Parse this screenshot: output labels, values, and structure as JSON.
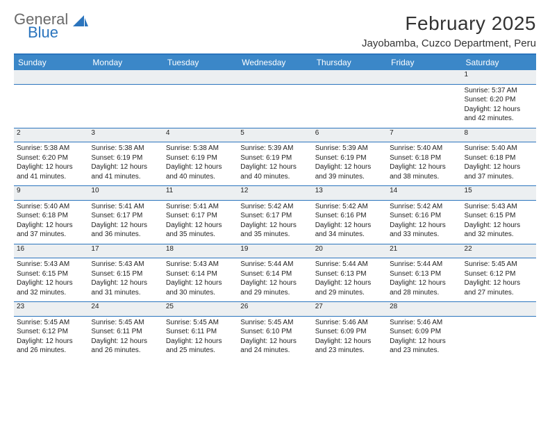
{
  "logo": {
    "text1": "General",
    "text2": "Blue",
    "color_gray": "#6a6a6a",
    "color_blue": "#2a74bd"
  },
  "title": "February 2025",
  "location": "Jayobamba, Cuzco Department, Peru",
  "header_bg": "#3b87c8",
  "header_fg": "#ffffff",
  "rule_color": "#2a74bd",
  "daynum_bg": "#eceff1",
  "weekdays": [
    "Sunday",
    "Monday",
    "Tuesday",
    "Wednesday",
    "Thursday",
    "Friday",
    "Saturday"
  ],
  "weeks": [
    [
      null,
      null,
      null,
      null,
      null,
      null,
      {
        "n": "1",
        "sunrise": "5:37 AM",
        "sunset": "6:20 PM",
        "daylight": "12 hours and 42 minutes."
      }
    ],
    [
      {
        "n": "2",
        "sunrise": "5:38 AM",
        "sunset": "6:20 PM",
        "daylight": "12 hours and 41 minutes."
      },
      {
        "n": "3",
        "sunrise": "5:38 AM",
        "sunset": "6:19 PM",
        "daylight": "12 hours and 41 minutes."
      },
      {
        "n": "4",
        "sunrise": "5:38 AM",
        "sunset": "6:19 PM",
        "daylight": "12 hours and 40 minutes."
      },
      {
        "n": "5",
        "sunrise": "5:39 AM",
        "sunset": "6:19 PM",
        "daylight": "12 hours and 40 minutes."
      },
      {
        "n": "6",
        "sunrise": "5:39 AM",
        "sunset": "6:19 PM",
        "daylight": "12 hours and 39 minutes."
      },
      {
        "n": "7",
        "sunrise": "5:40 AM",
        "sunset": "6:18 PM",
        "daylight": "12 hours and 38 minutes."
      },
      {
        "n": "8",
        "sunrise": "5:40 AM",
        "sunset": "6:18 PM",
        "daylight": "12 hours and 37 minutes."
      }
    ],
    [
      {
        "n": "9",
        "sunrise": "5:40 AM",
        "sunset": "6:18 PM",
        "daylight": "12 hours and 37 minutes."
      },
      {
        "n": "10",
        "sunrise": "5:41 AM",
        "sunset": "6:17 PM",
        "daylight": "12 hours and 36 minutes."
      },
      {
        "n": "11",
        "sunrise": "5:41 AM",
        "sunset": "6:17 PM",
        "daylight": "12 hours and 35 minutes."
      },
      {
        "n": "12",
        "sunrise": "5:42 AM",
        "sunset": "6:17 PM",
        "daylight": "12 hours and 35 minutes."
      },
      {
        "n": "13",
        "sunrise": "5:42 AM",
        "sunset": "6:16 PM",
        "daylight": "12 hours and 34 minutes."
      },
      {
        "n": "14",
        "sunrise": "5:42 AM",
        "sunset": "6:16 PM",
        "daylight": "12 hours and 33 minutes."
      },
      {
        "n": "15",
        "sunrise": "5:43 AM",
        "sunset": "6:15 PM",
        "daylight": "12 hours and 32 minutes."
      }
    ],
    [
      {
        "n": "16",
        "sunrise": "5:43 AM",
        "sunset": "6:15 PM",
        "daylight": "12 hours and 32 minutes."
      },
      {
        "n": "17",
        "sunrise": "5:43 AM",
        "sunset": "6:15 PM",
        "daylight": "12 hours and 31 minutes."
      },
      {
        "n": "18",
        "sunrise": "5:43 AM",
        "sunset": "6:14 PM",
        "daylight": "12 hours and 30 minutes."
      },
      {
        "n": "19",
        "sunrise": "5:44 AM",
        "sunset": "6:14 PM",
        "daylight": "12 hours and 29 minutes."
      },
      {
        "n": "20",
        "sunrise": "5:44 AM",
        "sunset": "6:13 PM",
        "daylight": "12 hours and 29 minutes."
      },
      {
        "n": "21",
        "sunrise": "5:44 AM",
        "sunset": "6:13 PM",
        "daylight": "12 hours and 28 minutes."
      },
      {
        "n": "22",
        "sunrise": "5:45 AM",
        "sunset": "6:12 PM",
        "daylight": "12 hours and 27 minutes."
      }
    ],
    [
      {
        "n": "23",
        "sunrise": "5:45 AM",
        "sunset": "6:12 PM",
        "daylight": "12 hours and 26 minutes."
      },
      {
        "n": "24",
        "sunrise": "5:45 AM",
        "sunset": "6:11 PM",
        "daylight": "12 hours and 26 minutes."
      },
      {
        "n": "25",
        "sunrise": "5:45 AM",
        "sunset": "6:11 PM",
        "daylight": "12 hours and 25 minutes."
      },
      {
        "n": "26",
        "sunrise": "5:45 AM",
        "sunset": "6:10 PM",
        "daylight": "12 hours and 24 minutes."
      },
      {
        "n": "27",
        "sunrise": "5:46 AM",
        "sunset": "6:09 PM",
        "daylight": "12 hours and 23 minutes."
      },
      {
        "n": "28",
        "sunrise": "5:46 AM",
        "sunset": "6:09 PM",
        "daylight": "12 hours and 23 minutes."
      },
      null
    ]
  ]
}
